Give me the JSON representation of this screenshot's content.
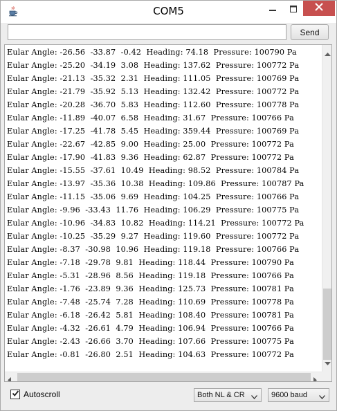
{
  "window": {
    "title": "COM5"
  },
  "toolbar": {
    "input_value": "",
    "send_label": "Send"
  },
  "console": {
    "lines": [
      "Eular Angle: -26.56  -33.87  -0.42  Heading: 74.18  Pressure: 100790 Pa",
      "Eular Angle: -25.20  -34.19  3.08  Heading: 137.62  Pressure: 100772 Pa",
      "Eular Angle: -21.13  -35.32  2.31  Heading: 111.05  Pressure: 100769 Pa",
      "Eular Angle: -21.79  -35.92  5.13  Heading: 132.42  Pressure: 100772 Pa",
      "Eular Angle: -20.28  -36.70  5.83  Heading: 112.60  Pressure: 100778 Pa",
      "Eular Angle: -11.89  -40.07  6.58  Heading: 31.67  Pressure: 100766 Pa",
      "Eular Angle: -17.25  -41.78  5.45  Heading: 359.44  Pressure: 100769 Pa",
      "Eular Angle: -22.67  -42.85  9.00  Heading: 25.00  Pressure: 100772 Pa",
      "Eular Angle: -17.90  -41.83  9.36  Heading: 62.87  Pressure: 100772 Pa",
      "Eular Angle: -15.55  -37.61  10.49  Heading: 98.52  Pressure: 100784 Pa",
      "Eular Angle: -13.97  -35.36  10.38  Heading: 109.86  Pressure: 100787 Pa",
      "Eular Angle: -11.15  -35.06  9.69  Heading: 104.25  Pressure: 100766 Pa",
      "Eular Angle: -9.96  -33.43  11.76  Heading: 106.29  Pressure: 100775 Pa",
      "Eular Angle: -10.96  -34.83  10.82  Heading: 114.21  Pressure: 100772 Pa",
      "Eular Angle: -10.25  -35.29  9.27  Heading: 119.60  Pressure: 100772 Pa",
      "Eular Angle: -8.37  -30.98  10.96  Heading: 119.18  Pressure: 100766 Pa",
      "Eular Angle: -7.18  -29.78  9.81  Heading: 118.44  Pressure: 100790 Pa",
      "Eular Angle: -5.31  -28.96  8.56  Heading: 119.18  Pressure: 100766 Pa",
      "Eular Angle: -1.76  -23.89  9.36  Heading: 125.73  Pressure: 100781 Pa",
      "Eular Angle: -7.48  -25.74  7.28  Heading: 110.69  Pressure: 100778 Pa",
      "Eular Angle: -6.18  -26.42  5.81  Heading: 108.40  Pressure: 100781 Pa",
      "Eular Angle: -4.32  -26.61  4.79  Heading: 106.94  Pressure: 100766 Pa",
      "Eular Angle: -2.43  -26.66  3.70  Heading: 107.66  Pressure: 100775 Pa",
      "Eular Angle: -0.81  -26.80  2.51  Heading: 104.63  Pressure: 100772 Pa"
    ]
  },
  "statusbar": {
    "autoscroll_label": "Autoscroll",
    "autoscroll_checked": true,
    "line_ending": "Both NL & CR",
    "baud_rate": "9600 baud"
  },
  "colors": {
    "close_button": "#c7504f",
    "background": "#ededed"
  },
  "icons": {
    "app": "java-cup-icon",
    "minimize": "minimize-icon",
    "maximize": "maximize-icon",
    "close": "close-icon"
  }
}
